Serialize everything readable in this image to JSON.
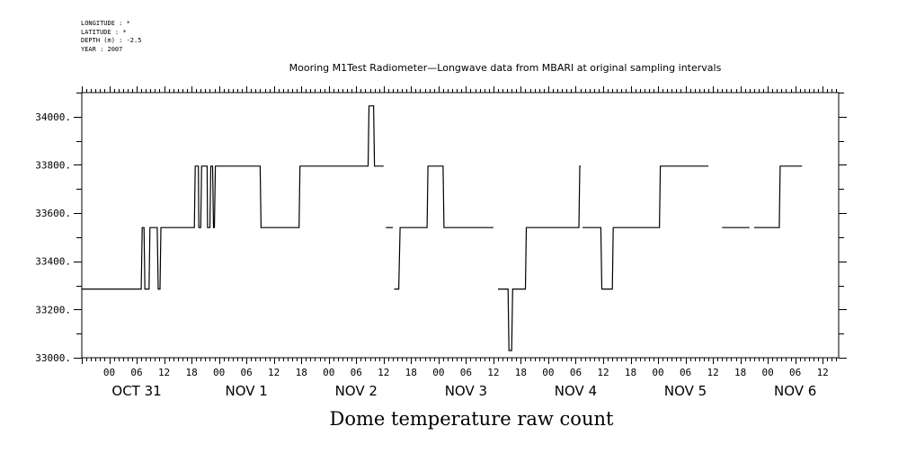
{
  "header": {
    "longitude": "LONGITUDE : *",
    "latitude": "LATITUDE : *",
    "depth": "DEPTH (m) : -2.5",
    "year": "YEAR : 2007"
  },
  "chart_data": {
    "type": "line",
    "title": "Mooring M1Test Radiometer—Longwave data from MBARI at original sampling intervals",
    "xlabel": "Dome temperature raw count",
    "ylabel": "",
    "x_unit": "hours since 2007-10-30 18:00",
    "xlim": [
      0,
      165.5
    ],
    "ylim": [
      33000,
      34100
    ],
    "yticks": [
      33000,
      33200,
      33400,
      33600,
      33800,
      34000
    ],
    "ytick_labels": [
      "33000.",
      "33200.",
      "33400.",
      "33600.",
      "33800.",
      "34000."
    ],
    "xtick_hours": [
      "00",
      "06",
      "12",
      "18",
      "00",
      "06",
      "12",
      "18",
      "00",
      "06",
      "12",
      "18",
      "00",
      "06",
      "12",
      "18",
      "00",
      "06",
      "12",
      "18",
      "00",
      "06",
      "12",
      "18",
      "00",
      "06",
      "12"
    ],
    "date_labels": [
      {
        "text": "OCT 31",
        "hour": 12
      },
      {
        "text": "NOV  1",
        "hour": 36
      },
      {
        "text": "NOV  2",
        "hour": 60
      },
      {
        "text": "NOV  3",
        "hour": 84
      },
      {
        "text": "NOV  4",
        "hour": 108
      },
      {
        "text": "NOV  5",
        "hour": 132
      },
      {
        "text": "NOV  6",
        "hour": 156
      }
    ],
    "grid": false,
    "series": [
      {
        "segments": [
          [
            [
              0,
              33285
            ],
            [
              13,
              33285
            ],
            [
              13.2,
              33540
            ],
            [
              13.6,
              33540
            ],
            [
              13.8,
              33285
            ],
            [
              14.7,
              33285
            ],
            [
              14.9,
              33540
            ],
            [
              16.5,
              33540
            ],
            [
              16.7,
              33285
            ],
            [
              17.1,
              33285
            ],
            [
              17.3,
              33540
            ],
            [
              24.6,
              33540
            ],
            [
              24.8,
              33795
            ],
            [
              25.5,
              33795
            ],
            [
              25.6,
              33540
            ],
            [
              26,
              33540
            ],
            [
              26.2,
              33795
            ],
            [
              27.4,
              33795
            ],
            [
              27.5,
              33540
            ],
            [
              28,
              33540
            ],
            [
              28.2,
              33795
            ],
            [
              28.6,
              33795
            ],
            [
              28.8,
              33540
            ],
            [
              29,
              33540
            ],
            [
              29.2,
              33795
            ],
            [
              39,
              33795
            ],
            [
              39.2,
              33540
            ],
            [
              47.5,
              33540
            ],
            [
              47.7,
              33795
            ],
            [
              62.6,
              33795
            ],
            [
              62.8,
              34045
            ],
            [
              63.8,
              34045
            ],
            [
              64,
              33795
            ],
            [
              66,
              33795
            ]
          ],
          [
            [
              66.5,
              33540
            ],
            [
              68,
              33540
            ]
          ],
          [
            [
              68.3,
              33285
            ],
            [
              69.3,
              33285
            ],
            [
              69.6,
              33540
            ],
            [
              75.5,
              33540
            ],
            [
              75.7,
              33795
            ],
            [
              79,
              33795
            ],
            [
              79.2,
              33540
            ],
            [
              90,
              33540
            ]
          ],
          [
            [
              91,
              33285
            ],
            [
              93.2,
              33285
            ],
            [
              93.4,
              33030
            ],
            [
              94,
              33030
            ],
            [
              94.2,
              33285
            ],
            [
              97,
              33285
            ],
            [
              97.2,
              33540
            ],
            [
              108.7,
              33540
            ],
            [
              108.9,
              33795
            ],
            [
              109.1,
              33795
            ]
          ],
          [
            [
              109.5,
              33540
            ],
            [
              113.5,
              33540
            ],
            [
              113.7,
              33285
            ],
            [
              116,
              33285
            ],
            [
              116.2,
              33540
            ],
            [
              126.3,
              33540
            ],
            [
              126.5,
              33795
            ],
            [
              137,
              33795
            ]
          ],
          [
            [
              140,
              33540
            ],
            [
              146,
              33540
            ]
          ],
          [
            [
              147,
              33540
            ],
            [
              152.5,
              33540
            ],
            [
              152.7,
              33795
            ],
            [
              157.5,
              33795
            ]
          ]
        ]
      }
    ]
  }
}
